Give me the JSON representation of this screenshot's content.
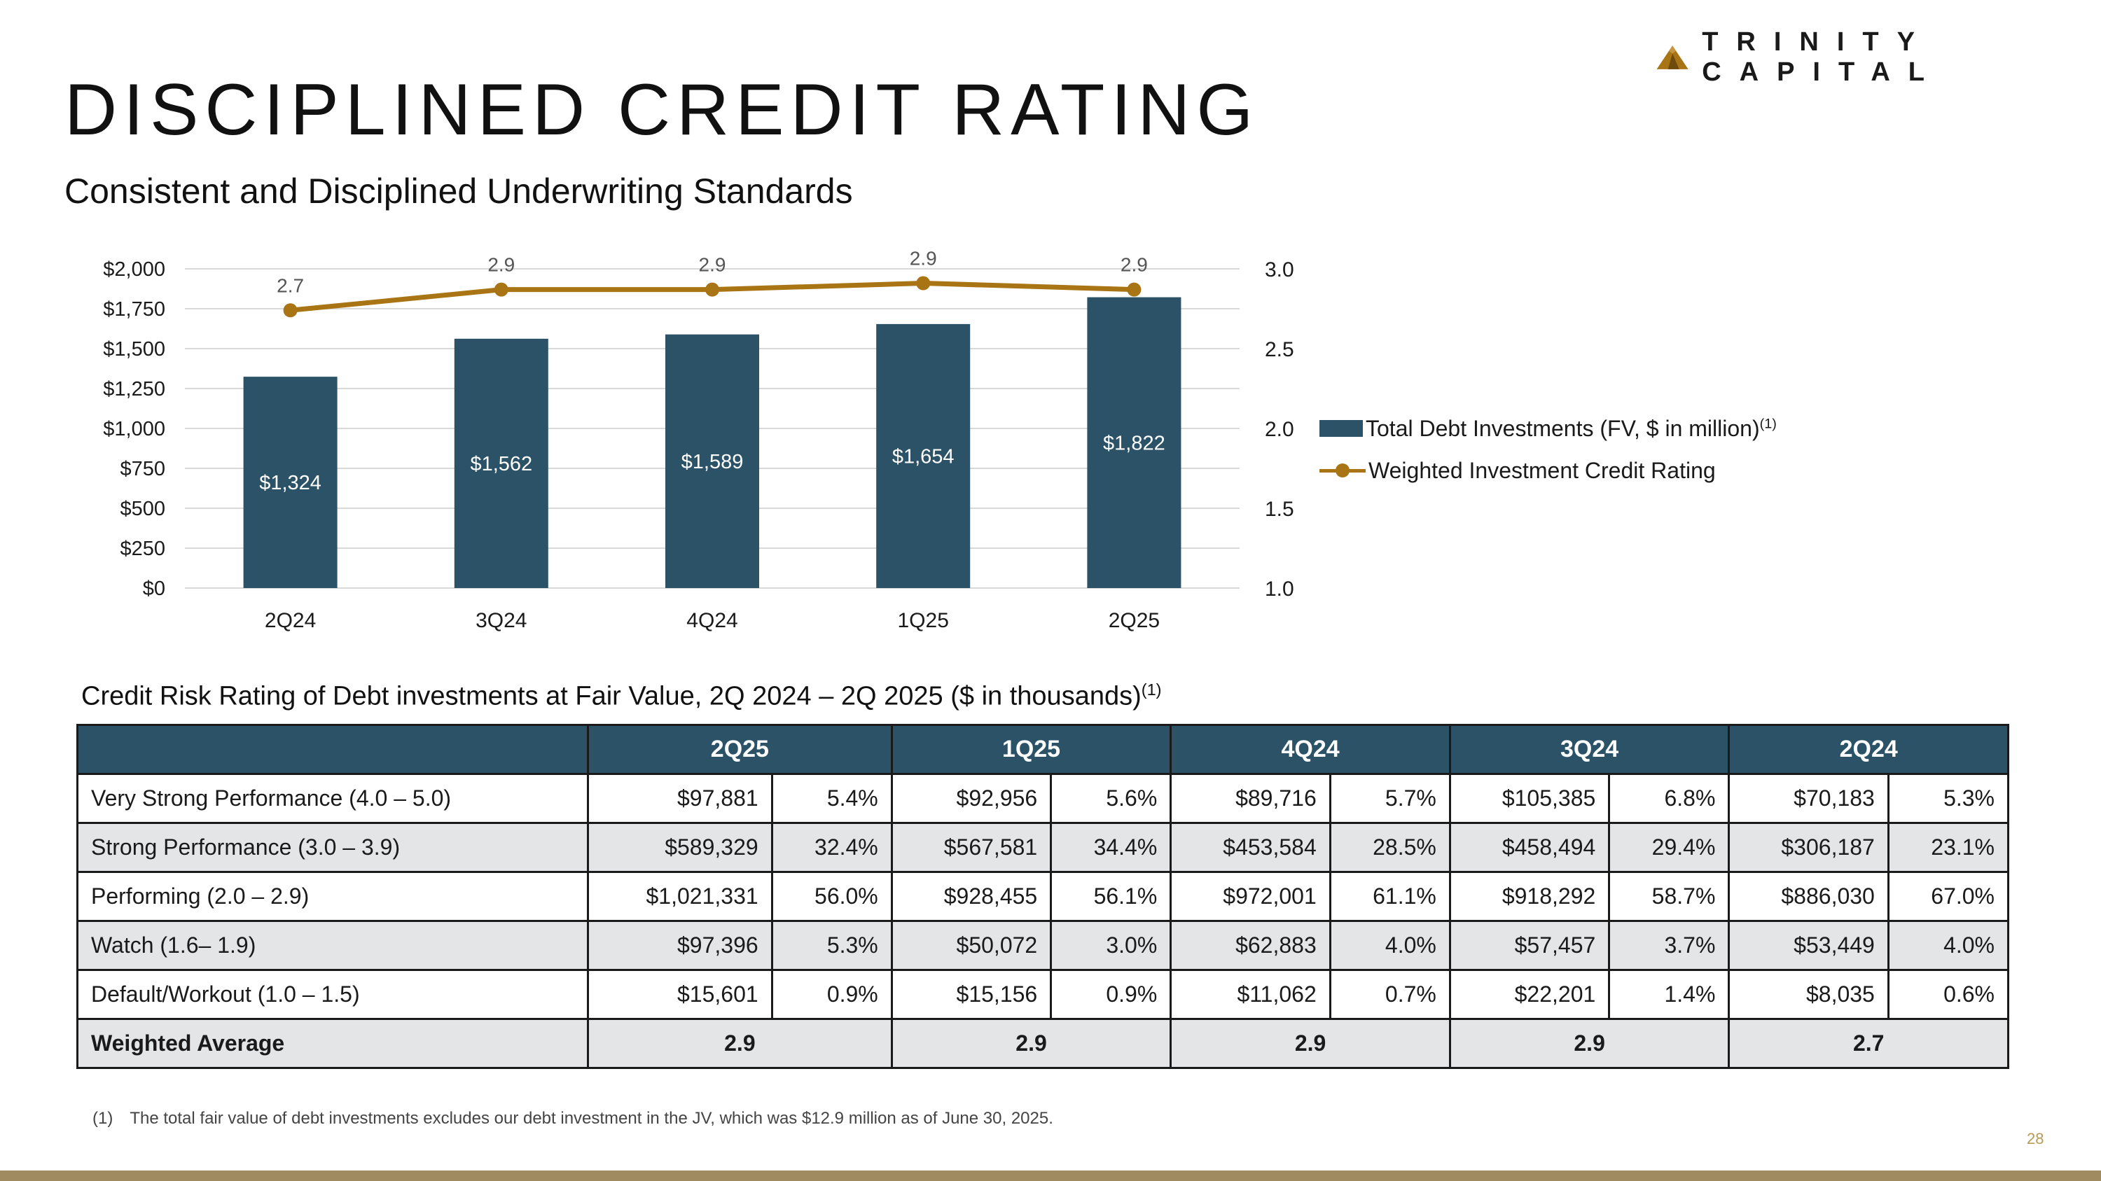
{
  "brand": {
    "name": "TRINITY CAPITAL",
    "logo_icon": "mountain-logo-icon",
    "color": "#a97414"
  },
  "title": "DISCIPLINED CREDIT RATING",
  "subtitle": "Consistent and Disciplined Underwriting Standards",
  "chart_data": {
    "type": "bar",
    "categories": [
      "2Q24",
      "3Q24",
      "4Q24",
      "1Q25",
      "2Q25"
    ],
    "series": [
      {
        "name": "Total Debt Investments (FV, $ in million)",
        "superscript": "(1)",
        "kind": "bar",
        "axis": "left",
        "color": "#2b5266",
        "values": [
          1324,
          1562,
          1589,
          1654,
          1822
        ],
        "labels": [
          "$1,324",
          "$1,562",
          "$1,589",
          "$1,654",
          "$1,822"
        ]
      },
      {
        "name": "Weighted Investment Credit Rating",
        "kind": "line",
        "axis": "right",
        "color": "#a97414",
        "values": [
          2.74,
          2.87,
          2.87,
          2.91,
          2.87
        ],
        "labels": [
          "2.7",
          "2.9",
          "2.9",
          "2.9",
          "2.9"
        ]
      }
    ],
    "left_axis": {
      "min": 0,
      "max": 2000,
      "ticks": [
        0,
        250,
        500,
        750,
        1000,
        1250,
        1500,
        1750,
        2000
      ],
      "tick_labels": [
        "$0",
        "$250",
        "$500",
        "$750",
        "$1,000",
        "$1,250",
        "$1,500",
        "$1,750",
        "$2,000"
      ]
    },
    "right_axis": {
      "min": 1.0,
      "max": 3.0,
      "ticks": [
        1.0,
        1.5,
        2.0,
        2.5,
        3.0
      ],
      "tick_labels": [
        "1.0",
        "1.5",
        "2.0",
        "2.5",
        "3.0"
      ]
    },
    "gridlines": true,
    "legend_position": "right"
  },
  "table": {
    "caption": "Credit Risk Rating of Debt investments at Fair Value, 2Q 2024 – 2Q 2025 ($ in thousands)",
    "caption_sup": "(1)",
    "headers": [
      "2Q25",
      "1Q25",
      "4Q24",
      "3Q24",
      "2Q24"
    ],
    "rows": [
      {
        "label": "Very Strong Performance (4.0 – 5.0)",
        "cells": [
          "$97,881",
          "5.4%",
          "$92,956",
          "5.6%",
          "$89,716",
          "5.7%",
          "$105,385",
          "6.8%",
          "$70,183",
          "5.3%"
        ]
      },
      {
        "label": "Strong Performance (3.0 – 3.9)",
        "cells": [
          "$589,329",
          "32.4%",
          "$567,581",
          "34.4%",
          "$453,584",
          "28.5%",
          "$458,494",
          "29.4%",
          "$306,187",
          "23.1%"
        ]
      },
      {
        "label": "Performing (2.0 – 2.9)",
        "cells": [
          "$1,021,331",
          "56.0%",
          "$928,455",
          "56.1%",
          "$972,001",
          "61.1%",
          "$918,292",
          "58.7%",
          "$886,030",
          "67.0%"
        ]
      },
      {
        "label": "Watch (1.6– 1.9)",
        "cells": [
          "$97,396",
          "5.3%",
          "$50,072",
          "3.0%",
          "$62,883",
          "4.0%",
          "$57,457",
          "3.7%",
          "$53,449",
          "4.0%"
        ]
      },
      {
        "label": "Default/Workout (1.0 – 1.5)",
        "cells": [
          "$15,601",
          "0.9%",
          "$15,156",
          "0.9%",
          "$11,062",
          "0.7%",
          "$22,201",
          "1.4%",
          "$8,035",
          "0.6%"
        ]
      }
    ],
    "weighted_average": {
      "label": "Weighted Average",
      "values": [
        "2.9",
        "2.9",
        "2.9",
        "2.9",
        "2.7"
      ]
    }
  },
  "footnote": {
    "number": "(1)",
    "text": "The total fair value of debt investments excludes our debt investment in the JV, which was $12.9 million as of June 30, 2025."
  },
  "page_number": "28"
}
